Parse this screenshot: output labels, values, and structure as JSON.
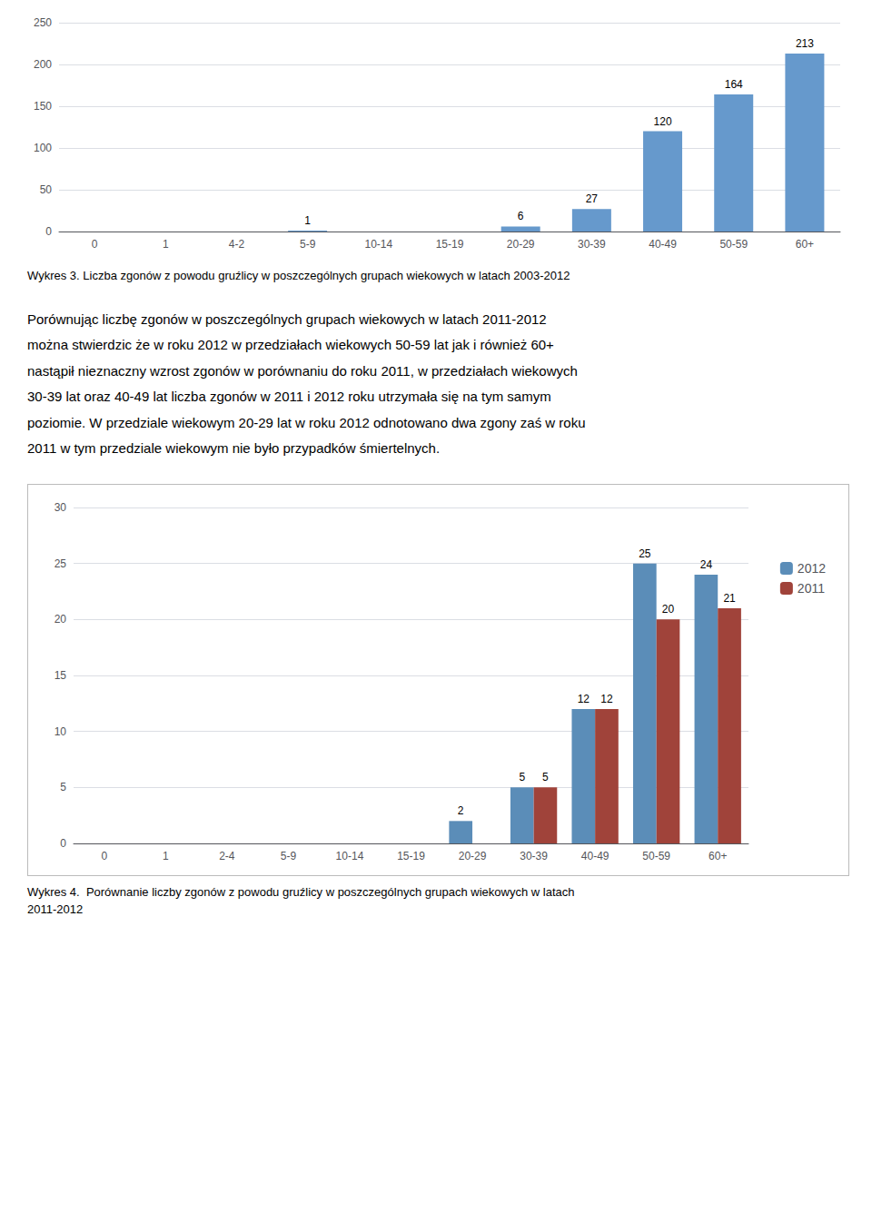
{
  "chart_data": [
    {
      "type": "bar",
      "title": "Wykres 3. Liczba zgonów z powodu gruźlicy w poszczególnych grupach wiekowych w latach 2003-2012",
      "annotations": [
        "Porównując liczbę zgonów w poszczególnych grupach wiekowych w latach 2011-2012",
        "można stwierdzic że w roku 2012 w przedziałach wiekowych 50-59 lat jak i również 60+",
        "nastąpił nieznaczny wzrost zgonów w porównaniu do roku 2011, w przedziałach wiekowych",
        "30-39 lat oraz 40-49 lat liczba zgonów w 2011 i 2012 roku utrzymała się na tym samym",
        "poziomie. W przedziale wiekowym 20-29 lat w roku 2012 odnotowano dwa zgony zaś w roku",
        "2011 w tym przedziale wiekowym nie było przypadków śmiertelnych."
      ],
      "categories": [
        "0",
        "1",
        "4-2",
        "5-9",
        "10-14",
        "15-19",
        "20-29",
        "30-39",
        "40-49",
        "50-59",
        "60+"
      ],
      "values": [
        0,
        0,
        0,
        1,
        0,
        0,
        6,
        27,
        120,
        164,
        213
      ],
      "value_labels": [
        null,
        null,
        null,
        "1",
        null,
        null,
        "6",
        "27",
        "120",
        "164",
        "213"
      ],
      "color": "#6699CC",
      "ylim": [
        0,
        250
      ],
      "yticks": [
        0,
        50,
        100,
        150,
        200,
        250
      ],
      "grid": true,
      "data_labels": true
    },
    {
      "type": "bar",
      "title": "Wykres 4.  Porównanie liczby zgonów z powodu gruźlicy w poszczególnych grupach wiekowych w latach\n2011-2012",
      "categories": [
        "0",
        "1",
        "2-4",
        "5-9",
        "10-14",
        "15-19",
        "20-29",
        "30-39",
        "40-49",
        "50-59",
        "60+"
      ],
      "series": [
        {
          "name": "2012",
          "color": "#5B8DB8",
          "values": [
            0,
            0,
            0,
            0,
            0,
            0,
            2,
            5,
            12,
            25,
            24
          ],
          "value_labels": [
            null,
            null,
            null,
            null,
            null,
            null,
            "2",
            "5",
            "12",
            "25",
            "24"
          ]
        },
        {
          "name": "2011",
          "color": "#A0433A",
          "values": [
            0,
            0,
            0,
            0,
            0,
            0,
            0,
            5,
            12,
            20,
            21
          ],
          "value_labels": [
            null,
            null,
            null,
            null,
            null,
            null,
            null,
            "5",
            "12",
            "20",
            "21"
          ]
        }
      ],
      "ylim": [
        0,
        30
      ],
      "yticks": [
        0,
        5,
        10,
        15,
        20,
        25,
        30
      ],
      "grid": true,
      "data_labels": true,
      "legend": "right"
    }
  ]
}
